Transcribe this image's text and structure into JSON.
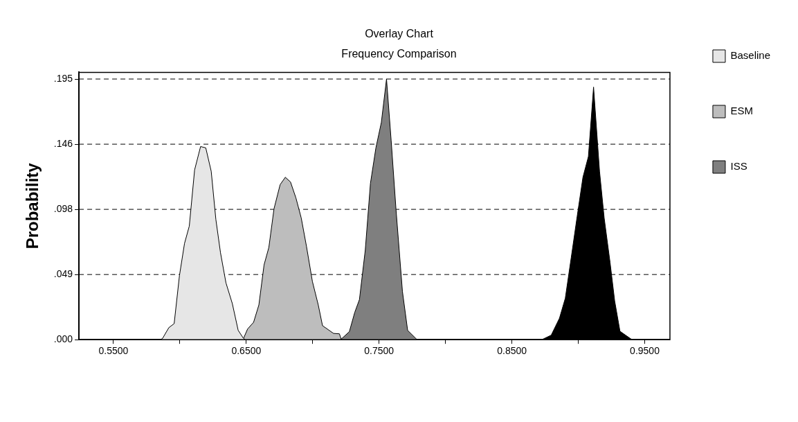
{
  "chart_data": {
    "type": "area",
    "title": "Overlay Chart",
    "subtitle": "Frequency Comparison",
    "ylabel": "Probability",
    "xlim": [
      0.524,
      0.969
    ],
    "ylim": [
      0,
      0.2
    ],
    "xticks": [
      {
        "value": 0.55,
        "label": "0.5500"
      },
      {
        "value": 0.6,
        "label": null
      },
      {
        "value": 0.65,
        "label": "0.6500"
      },
      {
        "value": 0.7,
        "label": null
      },
      {
        "value": 0.75,
        "label": "0.7500"
      },
      {
        "value": 0.8,
        "label": null
      },
      {
        "value": 0.85,
        "label": "0.8500"
      },
      {
        "value": 0.9,
        "label": null
      },
      {
        "value": 0.95,
        "label": "0.9500"
      }
    ],
    "yticks": [
      {
        "value": 0,
        "label": ".000"
      },
      {
        "value": 0.04875,
        "label": ".049"
      },
      {
        "value": 0.0975,
        "label": ".098"
      },
      {
        "value": 0.14625,
        "label": ".146"
      },
      {
        "value": 0.195,
        "label": ".195"
      }
    ],
    "grid": "y",
    "line_style": "dashed",
    "legend": "right",
    "series": [
      {
        "name": "Baseline",
        "color": "#e6e6e6",
        "x": [
          0.55,
          0.5855,
          0.587,
          0.5917,
          0.5957,
          0.5997,
          0.6035,
          0.6071,
          0.6111,
          0.6156,
          0.6195,
          0.6236,
          0.6271,
          0.6306,
          0.6347,
          0.6395,
          0.6439,
          0.6475,
          0.649
        ],
        "values": [
          0,
          0,
          0.001,
          0.009,
          0.012,
          0.048,
          0.072,
          0.085,
          0.127,
          0.1445,
          0.1435,
          0.126,
          0.09,
          0.065,
          0.0425,
          0.027,
          0.007,
          0.0015,
          0
        ]
      },
      {
        "name": "ESM",
        "color": "#bdbdbd",
        "x": [
          0.6475,
          0.651,
          0.6555,
          0.6595,
          0.6634,
          0.667,
          0.6709,
          0.6755,
          0.6794,
          0.6833,
          0.6874,
          0.6914,
          0.6953,
          0.6998,
          0.7042,
          0.7074,
          0.7157,
          0.7201,
          0.7216
        ],
        "values": [
          0,
          0.008,
          0.013,
          0.026,
          0.056,
          0.069,
          0.098,
          0.116,
          0.1215,
          0.118,
          0.106,
          0.091,
          0.07,
          0.0435,
          0.026,
          0.0105,
          0.0047,
          0.0044,
          0
        ]
      },
      {
        "name": "ISS",
        "color": "#7f7f7f",
        "x": [
          0.721,
          0.7276,
          0.7317,
          0.7352,
          0.7396,
          0.7435,
          0.7476,
          0.7517,
          0.7556,
          0.7591,
          0.7627,
          0.7676,
          0.7715,
          0.7786
        ],
        "values": [
          0,
          0.006,
          0.0205,
          0.03,
          0.067,
          0.117,
          0.1435,
          0.1625,
          0.195,
          0.149,
          0.098,
          0.036,
          0.007,
          0
        ]
      },
      {
        "color": "#000000",
        "x": [
          0.8725,
          0.8796,
          0.8858,
          0.8902,
          0.8947,
          0.8991,
          0.9035,
          0.9076,
          0.9115,
          0.916,
          0.9195,
          0.9239,
          0.9274,
          0.9314,
          0.939,
          0.9407
        ],
        "values": [
          0,
          0.0034,
          0.016,
          0.031,
          0.0616,
          0.092,
          0.1216,
          0.137,
          0.189,
          0.126,
          0.091,
          0.058,
          0.029,
          0.0063,
          0.001,
          0
        ]
      }
    ]
  }
}
